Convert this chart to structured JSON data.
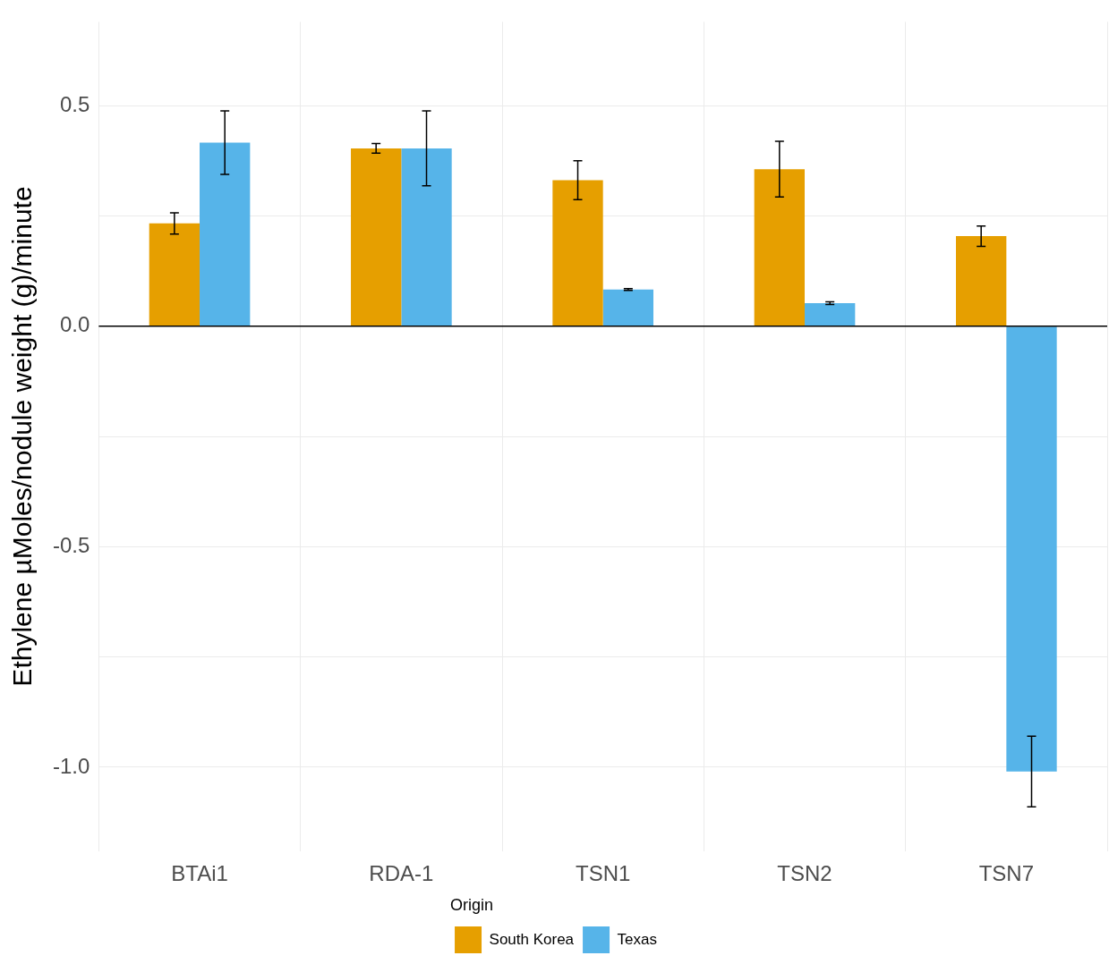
{
  "chart_data": {
    "type": "bar",
    "ylabel": "Ethylene µMoles/nodule weight (g)/minute",
    "legend_title": "Origin",
    "categories": [
      "BTAi1",
      "RDA-1",
      "TSN1",
      "TSN2",
      "TSN7"
    ],
    "series": [
      {
        "name": "South Korea",
        "color": "#e69f00",
        "values": [
          0.233,
          0.403,
          0.331,
          0.356,
          0.204
        ],
        "errors": [
          0.024,
          0.011,
          0.044,
          0.063,
          0.023
        ]
      },
      {
        "name": "Texas",
        "color": "#56b4e9",
        "values": [
          0.416,
          0.403,
          0.083,
          0.052,
          -1.01
        ],
        "errors": [
          0.072,
          0.085,
          0.002,
          0.003,
          0.08
        ]
      }
    ],
    "ylim": [
      -1.19,
      0.69
    ],
    "yticks": [
      {
        "value": -1.0,
        "label": "-1.0"
      },
      {
        "value": -0.75,
        "label": null
      },
      {
        "value": -0.5,
        "label": "-0.5"
      },
      {
        "value": -0.25,
        "label": null
      },
      {
        "value": 0,
        "label": "0.0"
      },
      {
        "value": 0.25,
        "label": null
      },
      {
        "value": 0.5,
        "label": "0.5"
      }
    ],
    "ref_lines": [
      {
        "axis": "y",
        "value": 0,
        "color": "#000000"
      }
    ],
    "grid": true,
    "legend": "bottom"
  }
}
